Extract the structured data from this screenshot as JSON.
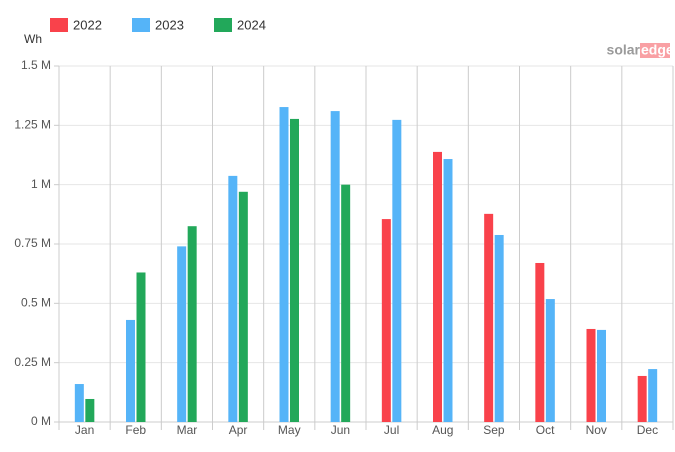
{
  "chart_data": {
    "type": "bar",
    "y_axis_title": "Wh",
    "logo": [
      "solar",
      "edge"
    ],
    "legend_position": "top-left",
    "grid": true,
    "categories": [
      "Jan",
      "Feb",
      "Mar",
      "Apr",
      "May",
      "Jun",
      "Jul",
      "Aug",
      "Sep",
      "Oct",
      "Nov",
      "Dec"
    ],
    "series": [
      {
        "name": "2022",
        "color": "#f9424b",
        "values": [
          null,
          null,
          null,
          null,
          null,
          null,
          855000,
          1138000,
          877000,
          670000,
          392000,
          194000
        ]
      },
      {
        "name": "2023",
        "color": "#55b4f8",
        "values": [
          160000,
          430000,
          740000,
          1037000,
          1327000,
          1310000,
          1273000,
          1108000,
          788000,
          518000,
          388000,
          223000
        ]
      },
      {
        "name": "2024",
        "color": "#22a85a",
        "values": [
          97000,
          630000,
          825000,
          970000,
          1277000,
          1000000,
          null,
          null,
          null,
          null,
          null,
          null
        ]
      }
    ],
    "ylim": [
      0,
      1500000
    ],
    "yticks": [
      {
        "value": 0,
        "label": "0 M"
      },
      {
        "value": 250000,
        "label": "0.25 M"
      },
      {
        "value": 500000,
        "label": "0.5 M"
      },
      {
        "value": 750000,
        "label": "0.75 M"
      },
      {
        "value": 1000000,
        "label": "1 M"
      },
      {
        "value": 1250000,
        "label": "1.25 M"
      },
      {
        "value": 1500000,
        "label": "1.5 M"
      }
    ]
  }
}
